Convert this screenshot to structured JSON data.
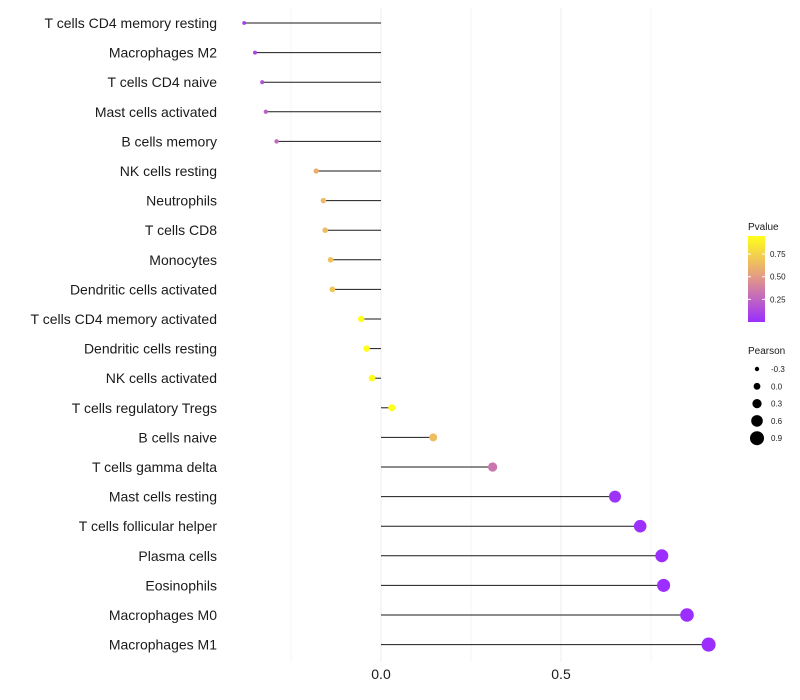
{
  "chart_data": {
    "type": "lollipop",
    "title": "",
    "xlabel": "",
    "ylabel": "",
    "xlim": [
      -0.25,
      0.92
    ],
    "x_ticks": [
      0.0,
      0.5
    ],
    "x_tick_labels": [
      "0.0",
      "0.5"
    ],
    "categories": [
      "T cells CD4 memory resting",
      "Macrophages M2",
      "T cells CD4 naive",
      "Mast cells activated",
      "B cells memory",
      "NK cells resting",
      "Neutrophils",
      "T cells CD8",
      "Monocytes",
      "Dendritic cells activated",
      "T cells CD4 memory activated",
      "Dendritic cells resting",
      "NK cells activated",
      "T cells regulatory  Tregs",
      "B cells naive",
      "T cells gamma delta",
      "Mast cells resting",
      "T cells follicular helper",
      "Plasma cells",
      "Eosinophils",
      "Macrophages M0",
      "Macrophages M1"
    ],
    "pearson": [
      -0.38,
      -0.35,
      -0.33,
      -0.32,
      -0.29,
      -0.18,
      -0.16,
      -0.155,
      -0.14,
      -0.135,
      -0.055,
      -0.04,
      -0.025,
      0.03,
      0.145,
      0.31,
      0.65,
      0.72,
      0.78,
      0.785,
      0.85,
      0.91
    ],
    "pvalue": [
      0.05,
      0.1,
      0.15,
      0.2,
      0.25,
      0.55,
      0.6,
      0.62,
      0.65,
      0.66,
      0.95,
      0.96,
      0.97,
      0.97,
      0.62,
      0.3,
      0.02,
      0.01,
      0.005,
      0.005,
      0.001,
      0.001
    ],
    "legend": {
      "color_title": "Pvalue",
      "color_ticks": [
        0.25,
        0.5,
        0.75
      ],
      "color_tick_labels": [
        "0.25",
        "0.50",
        "0.75"
      ],
      "color_range": [
        0.0,
        0.95
      ],
      "color_low": "#9B2EFF",
      "color_mid": "#E6A07F",
      "color_high": "#FFFF1A",
      "size_title": "Pearson",
      "size_values": [
        -0.3,
        0.0,
        0.3,
        0.6,
        0.9
      ],
      "size_labels": [
        "-0.3",
        "0.0",
        "0.3",
        "0.6",
        "0.9"
      ]
    },
    "grid": true
  }
}
